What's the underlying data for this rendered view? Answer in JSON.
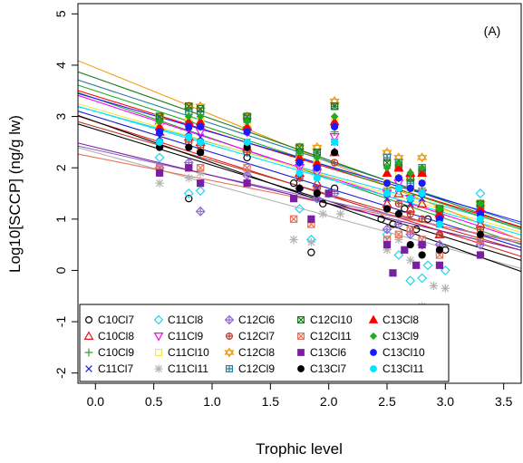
{
  "chart_data": {
    "type": "scatter",
    "panel_label": "(A)",
    "xlabel": "Trophic level",
    "ylabel": "Log10[SCCP] (ng/g lw)",
    "xlim": [
      -0.15,
      3.65
    ],
    "ylim": [
      -2.2,
      5.2
    ],
    "x_ticks": [
      0.0,
      0.5,
      1.0,
      1.5,
      2.0,
      2.5,
      3.0,
      3.5
    ],
    "x_tick_labels": [
      "0.0",
      "0.5",
      "1.0",
      "1.5",
      "2.0",
      "2.5",
      "3.0",
      "3.5"
    ],
    "y_ticks": [
      -2,
      -1,
      0,
      1,
      2,
      3,
      4,
      5
    ],
    "y_tick_labels": [
      "-2",
      "-1",
      "0",
      "1",
      "2",
      "3",
      "4",
      "5"
    ],
    "grid": false,
    "legend_position": "bottom",
    "series": [
      {
        "name": "C10Cl7",
        "color": "#000000",
        "marker": "circle-open",
        "intercept": 2.75,
        "slope": -0.7,
        "points": [
          [
            0.55,
            2.5
          ],
          [
            0.8,
            1.4
          ],
          [
            0.9,
            2.3
          ],
          [
            1.3,
            2.2
          ],
          [
            1.7,
            1.7
          ],
          [
            1.85,
            0.35
          ],
          [
            1.95,
            1.3
          ],
          [
            2.05,
            1.6
          ],
          [
            2.45,
            1.0
          ],
          [
            2.55,
            0.9
          ],
          [
            2.65,
            1.2
          ],
          [
            2.75,
            0.8
          ],
          [
            2.85,
            1.0
          ],
          [
            3.0,
            0.4
          ],
          [
            3.3,
            0.6
          ]
        ]
      },
      {
        "name": "C10Cl8",
        "color": "#e31a1c",
        "marker": "triangle-open",
        "intercept": 2.9,
        "slope": -0.72,
        "points": [
          [
            0.55,
            2.7
          ],
          [
            0.8,
            2.6
          ],
          [
            0.9,
            2.5
          ],
          [
            1.3,
            2.4
          ],
          [
            1.75,
            1.9
          ],
          [
            1.9,
            1.7
          ],
          [
            2.05,
            2.3
          ],
          [
            2.5,
            1.3
          ],
          [
            2.6,
            1.5
          ],
          [
            2.7,
            1.2
          ],
          [
            2.8,
            1.3
          ],
          [
            2.95,
            0.7
          ],
          [
            3.3,
            0.9
          ]
        ]
      },
      {
        "name": "C10Cl9",
        "color": "#2ca02c",
        "marker": "plus",
        "intercept": 3.35,
        "slope": -0.78,
        "points": [
          [
            0.55,
            2.9
          ],
          [
            0.8,
            2.9
          ],
          [
            0.9,
            2.8
          ],
          [
            1.3,
            2.8
          ],
          [
            1.75,
            2.1
          ],
          [
            1.9,
            2.0
          ],
          [
            2.05,
            2.7
          ],
          [
            2.5,
            1.6
          ],
          [
            2.6,
            1.8
          ],
          [
            2.7,
            1.4
          ],
          [
            2.8,
            1.6
          ],
          [
            2.95,
            1.0
          ],
          [
            3.3,
            1.2
          ]
        ]
      },
      {
        "name": "C11Cl7",
        "color": "#1f1fd0",
        "marker": "cross",
        "intercept": 3.0,
        "slope": -0.7,
        "points": [
          [
            0.55,
            2.6
          ],
          [
            0.8,
            2.7
          ],
          [
            0.9,
            2.6
          ],
          [
            1.3,
            2.5
          ],
          [
            1.75,
            1.8
          ],
          [
            1.9,
            1.6
          ],
          [
            2.05,
            2.5
          ],
          [
            2.5,
            1.4
          ],
          [
            2.6,
            1.6
          ],
          [
            2.7,
            1.3
          ],
          [
            2.8,
            1.4
          ],
          [
            2.95,
            0.9
          ],
          [
            3.3,
            1.0
          ]
        ]
      },
      {
        "name": "C11Cl8",
        "color": "#22d3ee",
        "marker": "diamond-open",
        "intercept": 3.1,
        "slope": -0.62,
        "points": [
          [
            0.55,
            2.2
          ],
          [
            0.8,
            1.5
          ],
          [
            0.9,
            1.55
          ],
          [
            1.3,
            2.3
          ],
          [
            1.75,
            1.2
          ],
          [
            1.85,
            0.6
          ],
          [
            2.0,
            1.5
          ],
          [
            2.5,
            0.7
          ],
          [
            2.6,
            0.3
          ],
          [
            2.7,
            -0.2
          ],
          [
            2.8,
            -0.15
          ],
          [
            2.85,
            0.1
          ],
          [
            3.0,
            0.0
          ],
          [
            3.3,
            1.5
          ]
        ]
      },
      {
        "name": "C11Cl9",
        "color": "#ff00ff",
        "marker": "triangle-down-open",
        "intercept": 3.3,
        "slope": -0.74,
        "points": [
          [
            0.55,
            2.8
          ],
          [
            0.8,
            2.8
          ],
          [
            0.9,
            2.7
          ],
          [
            1.3,
            2.7
          ],
          [
            1.75,
            2.0
          ],
          [
            1.9,
            1.9
          ],
          [
            2.05,
            2.6
          ],
          [
            2.5,
            1.5
          ],
          [
            2.6,
            1.7
          ],
          [
            2.7,
            1.4
          ],
          [
            2.8,
            1.5
          ],
          [
            2.95,
            1.0
          ],
          [
            3.3,
            1.1
          ]
        ]
      },
      {
        "name": "C11Cl10",
        "color": "#f5e642",
        "marker": "square-open",
        "intercept": 3.15,
        "slope": -0.66,
        "points": [
          [
            0.55,
            2.85
          ],
          [
            0.8,
            3.0
          ],
          [
            0.9,
            2.9
          ],
          [
            1.3,
            2.9
          ],
          [
            1.75,
            2.2
          ],
          [
            1.9,
            2.1
          ],
          [
            2.05,
            2.9
          ],
          [
            2.5,
            1.7
          ],
          [
            2.6,
            1.9
          ],
          [
            2.7,
            1.6
          ],
          [
            2.8,
            1.8
          ],
          [
            2.95,
            1.1
          ],
          [
            3.3,
            1.3
          ]
        ]
      },
      {
        "name": "C11Cl11",
        "color": "#b3b3b3",
        "marker": "asterisk",
        "intercept": 2.3,
        "slope": -0.62,
        "points": [
          [
            0.55,
            1.7
          ],
          [
            0.8,
            1.8
          ],
          [
            0.9,
            1.9
          ],
          [
            1.3,
            1.9
          ],
          [
            1.7,
            0.6
          ],
          [
            1.85,
            0.55
          ],
          [
            1.95,
            1.1
          ],
          [
            2.1,
            1.1
          ],
          [
            2.5,
            0.4
          ],
          [
            2.6,
            0.6
          ],
          [
            2.7,
            0.2
          ],
          [
            2.8,
            -0.7
          ],
          [
            2.9,
            -0.3
          ],
          [
            3.0,
            -0.35
          ],
          [
            3.3,
            0.3
          ]
        ]
      },
      {
        "name": "C12Cl6",
        "color": "#9467d4",
        "marker": "diamond-plus",
        "intercept": 2.35,
        "slope": -0.5,
        "points": [
          [
            0.55,
            2.0
          ],
          [
            0.8,
            2.1
          ],
          [
            0.9,
            1.15
          ],
          [
            1.3,
            1.85
          ],
          [
            1.75,
            1.6
          ],
          [
            1.9,
            1.4
          ],
          [
            2.05,
            1.5
          ],
          [
            2.5,
            0.8
          ],
          [
            2.6,
            0.9
          ],
          [
            2.7,
            0.7
          ],
          [
            2.8,
            0.5
          ],
          [
            2.95,
            0.5
          ],
          [
            3.3,
            0.5
          ]
        ]
      },
      {
        "name": "C12Cl7",
        "color": "#c0392b",
        "marker": "circle-plus",
        "intercept": 2.8,
        "slope": -0.66,
        "points": [
          [
            0.55,
            2.4
          ],
          [
            0.8,
            2.5
          ],
          [
            0.9,
            2.4
          ],
          [
            1.3,
            2.3
          ],
          [
            1.75,
            1.8
          ],
          [
            1.9,
            1.6
          ],
          [
            2.05,
            2.1
          ],
          [
            2.5,
            1.2
          ],
          [
            2.6,
            1.3
          ],
          [
            2.7,
            1.1
          ],
          [
            2.8,
            1.0
          ],
          [
            2.95,
            0.7
          ],
          [
            3.3,
            0.8
          ]
        ]
      },
      {
        "name": "C12Cl8",
        "color": "#f39c12",
        "marker": "star-of-david",
        "intercept": 3.95,
        "slope": -0.92,
        "points": [
          [
            0.55,
            3.0
          ],
          [
            0.8,
            3.2
          ],
          [
            0.9,
            3.2
          ],
          [
            1.3,
            3.0
          ],
          [
            1.75,
            2.4
          ],
          [
            1.9,
            2.4
          ],
          [
            2.05,
            3.3
          ],
          [
            2.5,
            2.3
          ],
          [
            2.6,
            2.2
          ],
          [
            2.7,
            1.8
          ],
          [
            2.8,
            2.2
          ],
          [
            2.95,
            1.2
          ],
          [
            3.3,
            1.3
          ]
        ]
      },
      {
        "name": "C12Cl9",
        "color": "#2a7f9e",
        "marker": "square-plus",
        "intercept": 3.6,
        "slope": -0.74,
        "points": [
          [
            0.55,
            2.95
          ],
          [
            0.8,
            3.1
          ],
          [
            0.9,
            3.1
          ],
          [
            1.3,
            2.95
          ],
          [
            1.75,
            2.3
          ],
          [
            1.9,
            2.3
          ],
          [
            2.05,
            3.2
          ],
          [
            2.5,
            2.2
          ],
          [
            2.6,
            2.1
          ],
          [
            2.7,
            1.7
          ],
          [
            2.8,
            2.0
          ],
          [
            2.95,
            1.1
          ],
          [
            3.3,
            1.2
          ]
        ]
      },
      {
        "name": "C12Cl10",
        "color": "#1e7a1e",
        "marker": "square-cross",
        "intercept": 3.75,
        "slope": -0.8,
        "points": [
          [
            0.55,
            3.0
          ],
          [
            0.8,
            3.2
          ],
          [
            0.9,
            3.15
          ],
          [
            1.3,
            3.0
          ],
          [
            1.75,
            2.4
          ],
          [
            1.9,
            2.3
          ],
          [
            2.05,
            3.2
          ],
          [
            2.5,
            2.1
          ],
          [
            2.6,
            2.0
          ],
          [
            2.7,
            1.8
          ],
          [
            2.8,
            1.9
          ],
          [
            2.95,
            1.2
          ],
          [
            3.3,
            1.3
          ]
        ]
      },
      {
        "name": "C12Cl11",
        "color": "#e8735a",
        "marker": "square-cross-open",
        "intercept": 2.2,
        "slope": -0.45,
        "points": [
          [
            0.55,
            2.0
          ],
          [
            0.8,
            2.0
          ],
          [
            0.9,
            2.0
          ],
          [
            1.3,
            2.0
          ],
          [
            1.7,
            1.0
          ],
          [
            1.85,
            0.9
          ],
          [
            2.0,
            1.5
          ],
          [
            2.5,
            0.6
          ],
          [
            2.6,
            0.7
          ],
          [
            2.7,
            0.8
          ],
          [
            2.8,
            0.6
          ],
          [
            2.95,
            0.3
          ],
          [
            3.3,
            0.6
          ]
        ]
      },
      {
        "name": "C13Cl6",
        "color": "#7b1fa2",
        "marker": "square-filled",
        "intercept": 2.4,
        "slope": -0.55,
        "points": [
          [
            0.55,
            1.9
          ],
          [
            0.8,
            2.0
          ],
          [
            0.9,
            1.7
          ],
          [
            1.3,
            1.7
          ],
          [
            1.7,
            1.4
          ],
          [
            1.85,
            1.0
          ],
          [
            2.0,
            1.5
          ],
          [
            2.5,
            0.5
          ],
          [
            2.55,
            -0.05
          ],
          [
            2.65,
            0.4
          ],
          [
            2.75,
            0.1
          ],
          [
            2.8,
            0.5
          ],
          [
            2.95,
            0.1
          ],
          [
            3.3,
            0.3
          ]
        ]
      },
      {
        "name": "C13Cl7",
        "color": "#000000",
        "marker": "circle-filled",
        "intercept": 2.9,
        "slope": -0.8,
        "points": [
          [
            0.55,
            2.4
          ],
          [
            0.8,
            2.4
          ],
          [
            0.9,
            2.3
          ],
          [
            1.3,
            2.4
          ],
          [
            1.75,
            1.6
          ],
          [
            1.9,
            1.5
          ],
          [
            2.05,
            2.3
          ],
          [
            2.5,
            1.2
          ],
          [
            2.6,
            1.1
          ],
          [
            2.7,
            0.5
          ],
          [
            2.8,
            0.3
          ],
          [
            2.95,
            0.4
          ],
          [
            3.3,
            0.7
          ]
        ]
      },
      {
        "name": "C13Cl8",
        "color": "#ff0000",
        "marker": "triangle-filled",
        "intercept": 3.4,
        "slope": -0.7,
        "points": [
          [
            0.55,
            2.8
          ],
          [
            0.8,
            2.9
          ],
          [
            0.9,
            2.9
          ],
          [
            1.3,
            2.8
          ],
          [
            1.75,
            2.2
          ],
          [
            1.9,
            2.1
          ],
          [
            2.05,
            2.9
          ],
          [
            2.5,
            1.9
          ],
          [
            2.6,
            2.0
          ],
          [
            2.7,
            1.9
          ],
          [
            2.8,
            1.9
          ],
          [
            2.95,
            1.1
          ],
          [
            3.3,
            1.2
          ]
        ]
      },
      {
        "name": "C13Cl9",
        "color": "#22aa22",
        "marker": "diamond-filled",
        "intercept": 3.5,
        "slope": -0.74,
        "points": [
          [
            0.55,
            2.9
          ],
          [
            0.8,
            3.0
          ],
          [
            0.9,
            3.0
          ],
          [
            1.3,
            2.9
          ],
          [
            1.75,
            2.3
          ],
          [
            1.9,
            2.2
          ],
          [
            2.05,
            3.0
          ],
          [
            2.5,
            2.0
          ],
          [
            2.6,
            2.1
          ],
          [
            2.7,
            1.9
          ],
          [
            2.8,
            2.0
          ],
          [
            2.95,
            1.2
          ],
          [
            3.3,
            1.3
          ]
        ]
      },
      {
        "name": "C13Cl10",
        "color": "#1a1aff",
        "marker": "circle-filled",
        "intercept": 3.35,
        "slope": -0.66,
        "points": [
          [
            0.55,
            2.7
          ],
          [
            0.8,
            2.8
          ],
          [
            0.9,
            2.8
          ],
          [
            1.3,
            2.7
          ],
          [
            1.75,
            2.1
          ],
          [
            1.9,
            2.0
          ],
          [
            2.05,
            2.8
          ],
          [
            2.5,
            1.7
          ],
          [
            2.6,
            1.8
          ],
          [
            2.7,
            1.6
          ],
          [
            2.8,
            1.7
          ],
          [
            2.95,
            1.0
          ],
          [
            3.3,
            1.1
          ]
        ]
      },
      {
        "name": "C13Cl11",
        "color": "#00e5ff",
        "marker": "circle-filled",
        "intercept": 3.1,
        "slope": -0.66,
        "points": [
          [
            0.55,
            2.5
          ],
          [
            0.8,
            2.6
          ],
          [
            0.9,
            2.5
          ],
          [
            1.3,
            2.5
          ],
          [
            1.75,
            1.9
          ],
          [
            1.9,
            1.8
          ],
          [
            2.05,
            2.5
          ],
          [
            2.5,
            1.5
          ],
          [
            2.6,
            1.6
          ],
          [
            2.7,
            1.4
          ],
          [
            2.8,
            1.5
          ],
          [
            2.95,
            0.9
          ],
          [
            3.3,
            1.0
          ]
        ]
      }
    ]
  }
}
